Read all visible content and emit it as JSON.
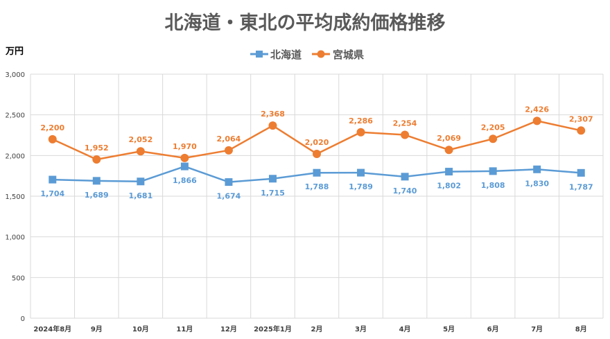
{
  "chart_data": {
    "type": "line",
    "title": "北海道・東北の平均成約価格推移",
    "unit_label": "万円",
    "categories": [
      "2024年8月",
      "9月",
      "10月",
      "11月",
      "12月",
      "2025年1月",
      "2月",
      "3月",
      "4月",
      "5月",
      "6月",
      "7月",
      "8月"
    ],
    "ylim": [
      0,
      3000
    ],
    "yticks": [
      0,
      500,
      1000,
      1500,
      2000,
      2500,
      3000
    ],
    "ytick_labels": [
      "0",
      "500",
      "1,000",
      "1,500",
      "2,000",
      "2,500",
      "3,000"
    ],
    "grid": true,
    "legend_position": "top-center",
    "series": [
      {
        "name": "北海道",
        "color": "#5B9BD5",
        "marker": "square",
        "values": [
          1704,
          1689,
          1681,
          1866,
          1674,
          1715,
          1788,
          1789,
          1740,
          1802,
          1808,
          1830,
          1787
        ],
        "labels": [
          "1,704",
          "1,689",
          "1,681",
          "1,866",
          "1,674",
          "1,715",
          "1,788",
          "1,789",
          "1,740",
          "1,802",
          "1,808",
          "1,830",
          "1,787"
        ],
        "label_position": "below"
      },
      {
        "name": "宮城県",
        "color": "#ED7D31",
        "marker": "circle",
        "values": [
          2200,
          1952,
          2052,
          1970,
          2064,
          2368,
          2020,
          2286,
          2254,
          2069,
          2205,
          2426,
          2307
        ],
        "labels": [
          "2,200",
          "1,952",
          "2,052",
          "1,970",
          "2,064",
          "2,368",
          "2,020",
          "2,286",
          "2,254",
          "2,069",
          "2,205",
          "2,426",
          "2,307"
        ],
        "label_position": "above"
      }
    ]
  }
}
